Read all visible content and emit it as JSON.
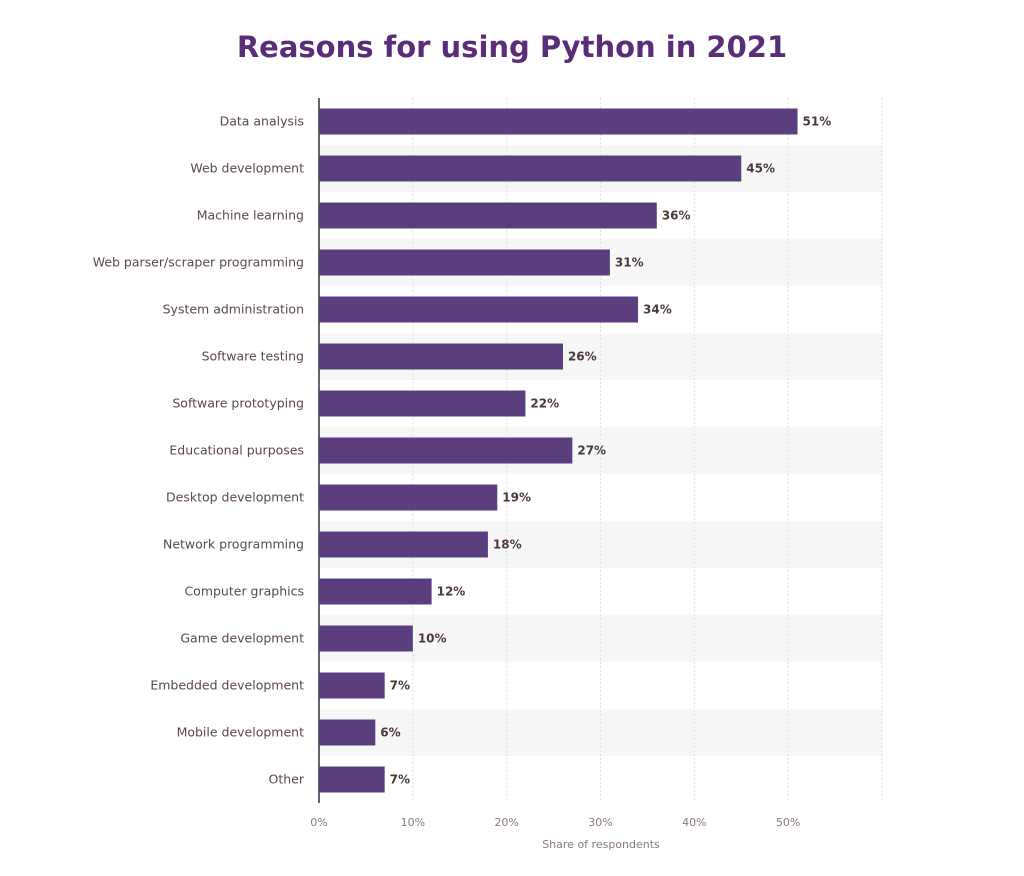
{
  "chart_data": {
    "type": "bar",
    "orientation": "horizontal",
    "title": "Reasons for using Python in 2021",
    "xlabel": "Share of respondents",
    "ylabel": "",
    "categories": [
      "Data analysis",
      "Web development",
      "Machine learning",
      "Web parser/scraper programming",
      "System administration",
      "Software testing",
      "Software prototyping",
      "Educational purposes",
      "Desktop development",
      "Network programming",
      "Computer graphics",
      "Game development",
      "Embedded development",
      "Mobile development",
      "Other"
    ],
    "values": [
      51,
      45,
      36,
      31,
      34,
      26,
      22,
      27,
      19,
      18,
      12,
      10,
      7,
      6,
      7
    ],
    "data_labels": [
      "51%",
      "45%",
      "36%",
      "31%",
      "34%",
      "26%",
      "22%",
      "27%",
      "19%",
      "18%",
      "12%",
      "10%",
      "7%",
      "6%",
      "7%"
    ],
    "xlim": [
      0,
      60
    ],
    "ticks": [
      0,
      10,
      20,
      30,
      40,
      50
    ],
    "tick_labels": [
      "0%",
      "10%",
      "20%",
      "30%",
      "40%",
      "50%"
    ],
    "grid": true,
    "legend": "none",
    "colors": {
      "bar": "#5a3e7e",
      "title": "#5b2d78",
      "alt_row": "#f7f7f7"
    }
  }
}
